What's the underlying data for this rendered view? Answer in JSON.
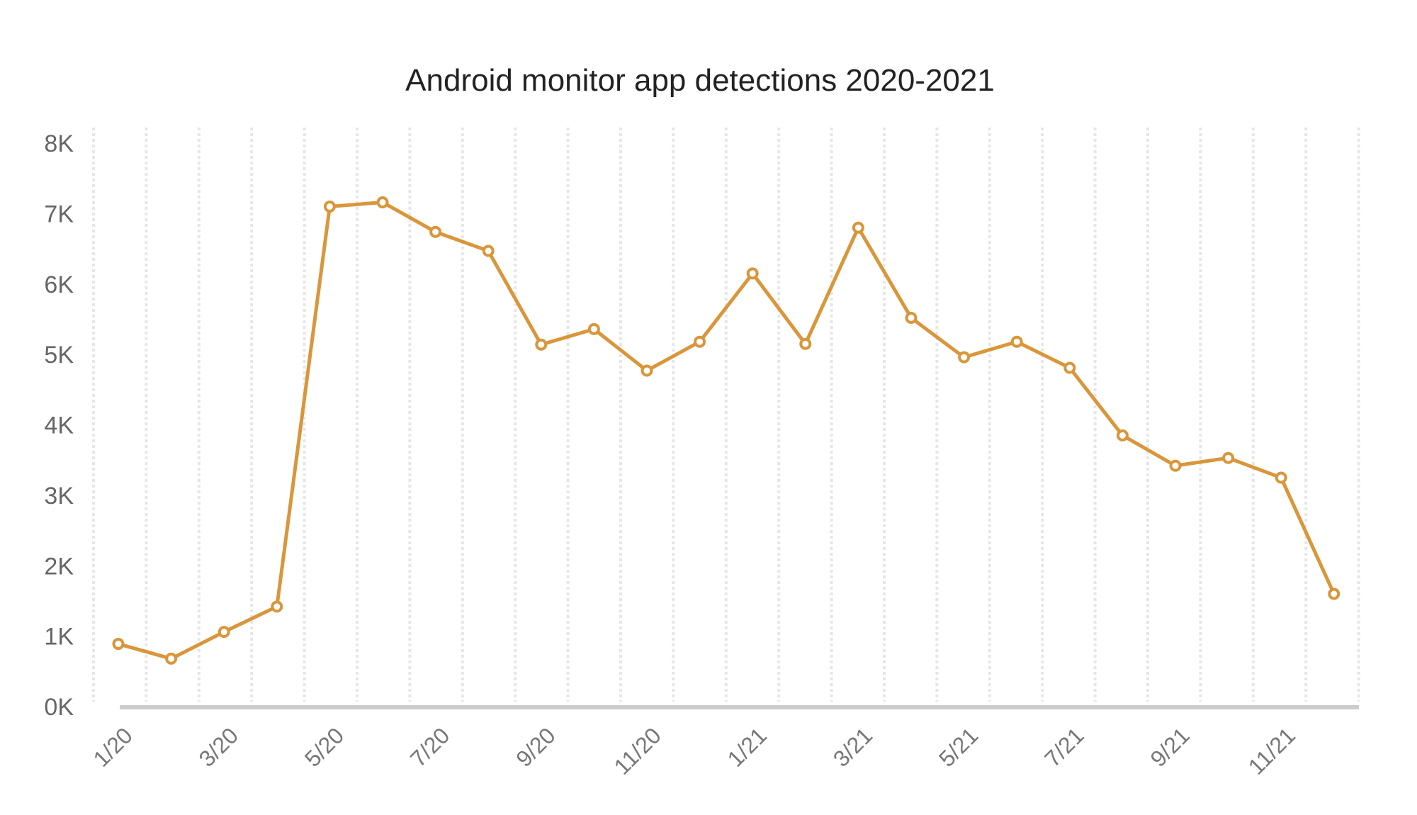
{
  "chart_data": {
    "type": "line",
    "title": "Android monitor app detections 2020-2021",
    "xlabel": "",
    "ylabel": "",
    "ylim": [
      0,
      8000
    ],
    "y_ticks": [
      "0K",
      "1K",
      "2K",
      "3K",
      "4K",
      "5K",
      "6K",
      "7K",
      "8K"
    ],
    "y_tick_values": [
      0,
      1000,
      2000,
      3000,
      4000,
      5000,
      6000,
      7000,
      8000
    ],
    "x": [
      "1/20",
      "2/20",
      "3/20",
      "4/20",
      "5/20",
      "6/20",
      "7/20",
      "8/20",
      "9/20",
      "10/20",
      "11/20",
      "12/20",
      "1/21",
      "2/21",
      "3/21",
      "4/21",
      "5/21",
      "6/21",
      "7/21",
      "8/21",
      "9/21",
      "10/21",
      "11/21",
      "12/21"
    ],
    "x_tick_labels": [
      "1/20",
      "3/20",
      "5/20",
      "7/20",
      "9/20",
      "11/20",
      "1/21",
      "3/21",
      "5/21",
      "7/21",
      "9/21",
      "11/21"
    ],
    "series": [
      {
        "name": "Detections",
        "color": "#d9963a",
        "values": [
          890,
          680,
          1060,
          1420,
          7100,
          7160,
          6740,
          6470,
          5140,
          5360,
          4770,
          5180,
          6150,
          5150,
          6800,
          5520,
          4960,
          5180,
          4810,
          3850,
          3420,
          3530,
          3250,
          1600
        ]
      }
    ],
    "grid": "vertical dotted",
    "legend": "none"
  }
}
